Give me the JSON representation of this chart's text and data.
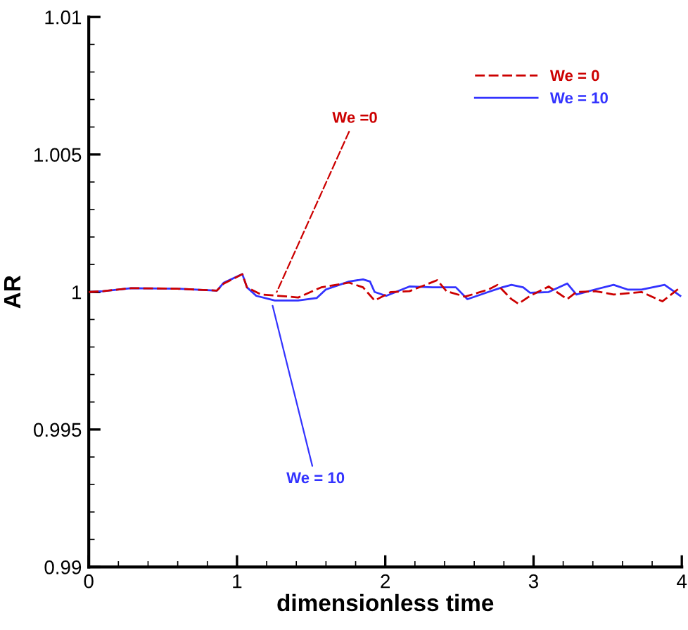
{
  "chart_data": {
    "type": "line",
    "xlabel": "dimensionless time",
    "ylabel": "AR",
    "xlim": [
      0,
      4
    ],
    "xticks": [
      0,
      1,
      2,
      3,
      4
    ],
    "ylim": [
      0.99,
      1.01
    ],
    "yticks": [
      0.99,
      0.995,
      1,
      1.005,
      1.01
    ],
    "legend": "top right",
    "grid": false,
    "series": [
      {
        "name": "We = 0",
        "color": "#cc0000",
        "line_style": "dashed",
        "x": [
          0,
          0.097,
          0.285,
          0.598,
          0.864,
          0.911,
          1.036,
          1.067,
          1.161,
          1.286,
          1.412,
          1.568,
          1.756,
          1.85,
          1.928,
          2.038,
          2.163,
          2.35,
          2.413,
          2.538,
          2.695,
          2.757,
          2.851,
          2.898,
          2.977,
          3.102,
          3.227,
          3.289,
          3.415,
          3.54,
          3.728,
          3.869,
          3.99
        ],
        "values": [
          1.0,
          1.00003,
          1.00014,
          1.00012,
          1.00005,
          1.00031,
          1.00065,
          1.00017,
          0.99991,
          0.99986,
          0.9998,
          1.00017,
          1.00034,
          1.00017,
          0.99969,
          1.0,
          1.00003,
          1.00043,
          1.00003,
          0.99983,
          1.00009,
          1.00026,
          0.99974,
          0.99957,
          0.99986,
          1.0002,
          0.99974,
          1.0,
          1.00003,
          0.99991,
          1.0,
          0.99966,
          1.00017
        ]
      },
      {
        "name": "We = 10",
        "color": "#3333ff",
        "line_style": "solid",
        "x": [
          0,
          0.097,
          0.285,
          0.598,
          0.864,
          0.911,
          1.036,
          1.067,
          1.13,
          1.255,
          1.412,
          1.537,
          1.599,
          1.756,
          1.85,
          1.897,
          1.928,
          2.006,
          2.163,
          2.319,
          2.476,
          2.554,
          2.695,
          2.789,
          2.851,
          2.93,
          2.977,
          3.102,
          3.227,
          3.289,
          3.415,
          3.54,
          3.634,
          3.728,
          3.884,
          3.99
        ],
        "values": [
          1.0,
          1.00003,
          1.00014,
          1.00012,
          1.00005,
          1.00034,
          1.00065,
          1.00017,
          0.99986,
          0.99969,
          0.99969,
          0.99978,
          1.00009,
          1.00038,
          1.00046,
          1.00038,
          1.0,
          0.99986,
          1.0002,
          1.00017,
          1.00017,
          0.99974,
          1.0,
          1.00017,
          1.00026,
          1.00017,
          0.99997,
          1.0,
          1.00031,
          0.99991,
          1.00009,
          1.00026,
          1.00009,
          1.00009,
          1.00026,
          0.99986
        ]
      }
    ],
    "annotations": [
      {
        "text": "We =0",
        "x": 1.268,
        "y": 1.0
      },
      {
        "text": "We = 10",
        "x": 1.24,
        "y": 0.9995
      }
    ]
  }
}
